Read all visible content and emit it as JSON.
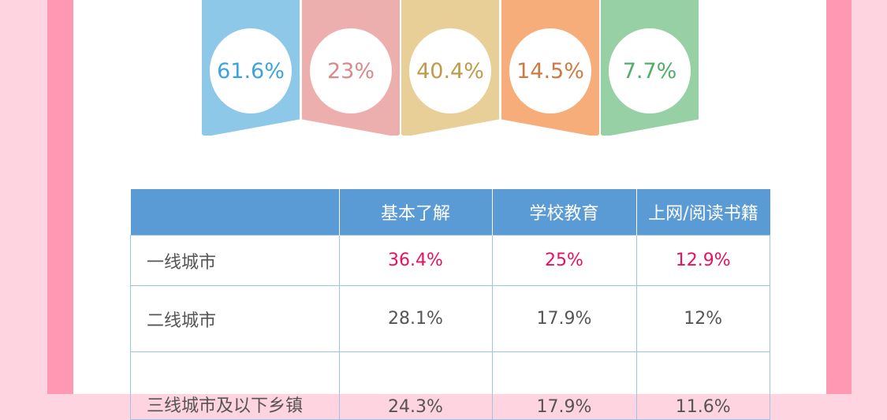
{
  "banners": [
    {
      "value": "61.6%",
      "bg": "#8ec8e8",
      "text": "#3ba4db"
    },
    {
      "value": "23%",
      "bg": "#ecafad",
      "text": "#d98a88"
    },
    {
      "value": "40.4%",
      "bg": "#e8cf98",
      "text": "#c09a4a"
    },
    {
      "value": "14.5%",
      "bg": "#f6ad79",
      "text": "#cf7a45"
    },
    {
      "value": "7.7%",
      "bg": "#98d0a6",
      "text": "#4fae68"
    }
  ],
  "table": {
    "headers": [
      "",
      "基本了解",
      "学校教育",
      "上网/阅读书籍"
    ],
    "rows": [
      {
        "label": "一线城市",
        "cells": [
          "36.4%",
          "25%",
          "12.9%"
        ],
        "highlight": true
      },
      {
        "label": "二线城市",
        "cells": [
          "28.1%",
          "17.9%",
          "12%"
        ]
      },
      {
        "label": "三线城市及以下乡镇",
        "cells": [
          "24.3%",
          "17.9%",
          "11.6%"
        ]
      }
    ],
    "highlight_color": "#e8115f",
    "header_color": "#5b9bd5"
  }
}
